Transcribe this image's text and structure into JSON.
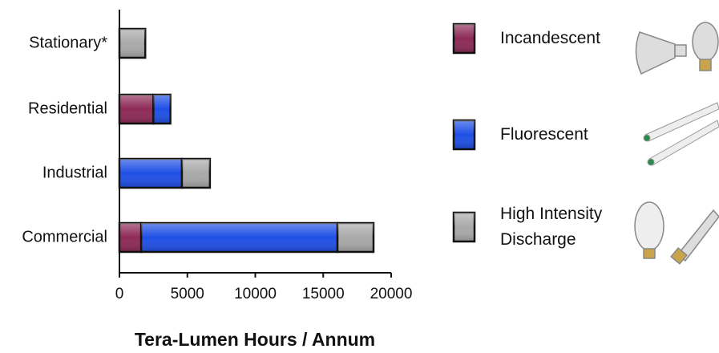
{
  "chart_data": {
    "type": "stacked-bar-horizontal",
    "x_label": "Tera-Lumen Hours / Annum",
    "categories": [
      "Stationary*",
      "Residential",
      "Industrial",
      "Commercial"
    ],
    "series": [
      {
        "name": "Incandescent",
        "color": "#8e2a57",
        "values": [
          0,
          2500,
          0,
          1600
        ]
      },
      {
        "name": "Fluorescent",
        "color": "#1f4fe6",
        "values": [
          0,
          1250,
          4600,
          14450
        ]
      },
      {
        "name": "High Intensity Discharge",
        "color": "#a9a9a9",
        "values": [
          1900,
          0,
          2060,
          2650
        ]
      }
    ],
    "xlim": [
      0,
      20000
    ],
    "xticks": [
      0,
      5000,
      10000,
      15000,
      20000
    ],
    "grid": false
  }
}
